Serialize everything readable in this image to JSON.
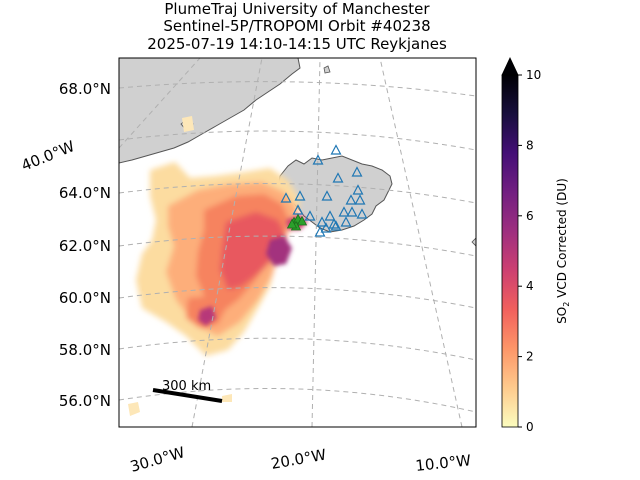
{
  "title": {
    "line1": "PlumeTraj    University of Manchester",
    "line2": "Sentinel-5P/TROPOMI Orbit #40238",
    "line3": "2025-07-19   14:10-14:15 UTC   Reykjanes"
  },
  "lat_labels": [
    "68.0°N",
    "64.0°N",
    "62.0°N",
    "60.0°N",
    "58.0°N",
    "56.0°N"
  ],
  "lon_labels": [
    "40.0°W",
    "30.0°W",
    "20.0°W",
    "10.0°W"
  ],
  "colorbar": {
    "label_prefix": "SO",
    "label_sub": "2",
    "label_suffix": " VCD Corrected (DU)",
    "ticks": [
      "0",
      "2",
      "4",
      "6",
      "8",
      "10"
    ],
    "colors": [
      "#fcfdbf",
      "#feca8d",
      "#fd9668",
      "#f1605d",
      "#cd4071",
      "#9e2f7f",
      "#721f81",
      "#440f76",
      "#180f3d",
      "#000004"
    ]
  },
  "scale_bar": {
    "label": "300 km"
  },
  "chart_data": {
    "type": "heatmap",
    "title": "PlumeTraj    University of Manchester / Sentinel-5P/TROPOMI Orbit #40238 / 2025-07-19   14:10-14:15 UTC   Reykjanes",
    "colorbar_label": "SO2 VCD Corrected (DU)",
    "colorbar_range": [
      0,
      10
    ],
    "colorbar_extend": "max",
    "colormap": "magma_r",
    "lat_ticks": [
      56,
      58,
      60,
      62,
      64,
      68
    ],
    "lon_ticks": [
      -40,
      -30,
      -20,
      -10
    ],
    "grid": true,
    "markers": [
      {
        "type": "volcano triangles (open, blue)",
        "count": 22
      },
      {
        "type": "source triangles (filled, green)",
        "location": "Reykjanes"
      }
    ]
  }
}
